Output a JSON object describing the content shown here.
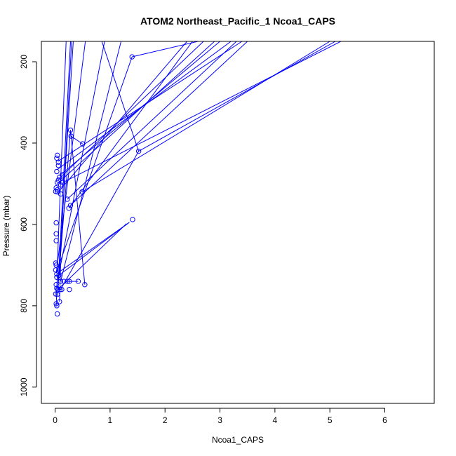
{
  "chart_data": {
    "type": "line",
    "title": "ATOM2 Northeast_Pacific_1 Ncoa1_CAPS",
    "xlabel": "Ncoa1_CAPS",
    "ylabel": "Pressure (mbar)",
    "x_ticks": [
      "0",
      "1",
      "2",
      "3",
      "4",
      "5",
      "6"
    ],
    "y_ticks": [
      "200",
      "400",
      "600",
      "800",
      "1000"
    ],
    "xlim": [
      -0.25,
      6.9
    ],
    "ylim": [
      1040,
      150
    ],
    "y_inverted": true,
    "grid": false,
    "legend": "none",
    "series_color": "#0000ff",
    "marker": "open-circle",
    "points": [
      [
        1.4,
        188
      ],
      [
        0.28,
        368
      ],
      [
        0.29,
        383
      ],
      [
        0.5,
        402
      ],
      [
        1.52,
        420
      ],
      [
        0.04,
        430
      ],
      [
        0.03,
        437
      ],
      [
        0.06,
        447
      ],
      [
        0.06,
        455
      ],
      [
        0.03,
        470
      ],
      [
        0.13,
        478
      ],
      [
        0.08,
        484
      ],
      [
        0.06,
        491
      ],
      [
        0.04,
        497
      ],
      [
        0.14,
        497
      ],
      [
        0.1,
        503
      ],
      [
        0.02,
        510
      ],
      [
        0.04,
        515
      ],
      [
        0.01,
        519
      ],
      [
        0.49,
        520
      ],
      [
        0.04,
        520
      ],
      [
        0.1,
        525
      ],
      [
        0.22,
        538
      ],
      [
        0.28,
        553
      ],
      [
        0.25,
        560
      ],
      [
        1.41,
        588
      ],
      [
        0.02,
        596
      ],
      [
        0.02,
        623
      ],
      [
        0.02,
        640
      ],
      [
        0.01,
        695
      ],
      [
        0.02,
        700
      ],
      [
        0.01,
        712
      ],
      [
        0.03,
        722
      ],
      [
        0.07,
        725
      ],
      [
        0.03,
        730
      ],
      [
        0.1,
        740
      ],
      [
        0.16,
        740
      ],
      [
        0.22,
        740
      ],
      [
        0.26,
        740
      ],
      [
        0.42,
        740
      ],
      [
        0.02,
        748
      ],
      [
        0.54,
        748
      ],
      [
        0.03,
        757
      ],
      [
        0.05,
        760
      ],
      [
        0.09,
        760
      ],
      [
        0.12,
        760
      ],
      [
        0.26,
        760
      ],
      [
        0.01,
        771
      ],
      [
        0.04,
        772
      ],
      [
        0.08,
        790
      ],
      [
        0.02,
        795
      ],
      [
        0.03,
        800
      ],
      [
        0.04,
        820
      ]
    ],
    "segments": [
      [
        [
          0.05,
          760
        ],
        [
          0.28,
          150
        ]
      ],
      [
        [
          0.08,
          725
        ],
        [
          0.3,
          150
        ]
      ],
      [
        [
          0.04,
          700
        ],
        [
          0.2,
          150
        ]
      ],
      [
        [
          0.06,
          740
        ],
        [
          0.33,
          150
        ]
      ],
      [
        [
          0.02,
          720
        ],
        [
          0.55,
          150
        ]
      ],
      [
        [
          0.1,
          700
        ],
        [
          0.9,
          150
        ]
      ],
      [
        [
          0.1,
          740
        ],
        [
          1.2,
          150
        ]
      ],
      [
        [
          0.06,
          520
        ],
        [
          2.4,
          150
        ]
      ],
      [
        [
          0.05,
          490
        ],
        [
          2.7,
          150
        ]
      ],
      [
        [
          0.08,
          480
        ],
        [
          3.0,
          150
        ]
      ],
      [
        [
          0.04,
          465
        ],
        [
          3.2,
          150
        ]
      ],
      [
        [
          0.05,
          445
        ],
        [
          3.4,
          150
        ]
      ],
      [
        [
          0.04,
          500
        ],
        [
          2.9,
          150
        ]
      ],
      [
        [
          0.22,
          538
        ],
        [
          3.3,
          150
        ]
      ],
      [
        [
          0.28,
          553
        ],
        [
          3.5,
          150
        ]
      ],
      [
        [
          0.25,
          560
        ],
        [
          2.5,
          150
        ]
      ],
      [
        [
          0.49,
          520
        ],
        [
          5.0,
          150
        ]
      ],
      [
        [
          0.14,
          497
        ],
        [
          5.2,
          150
        ]
      ],
      [
        [
          0.1,
          760
        ],
        [
          1.52,
          420
        ]
      ],
      [
        [
          1.52,
          420
        ],
        [
          0.85,
          150
        ]
      ],
      [
        [
          1.52,
          420
        ],
        [
          5.1,
          150
        ]
      ],
      [
        [
          1.4,
          188
        ],
        [
          2.6,
          150
        ]
      ],
      [
        [
          0.02,
          720
        ],
        [
          1.4,
          188
        ]
      ],
      [
        [
          0.07,
          725
        ],
        [
          1.35,
          595
        ]
      ],
      [
        [
          0.05,
          760
        ],
        [
          1.3,
          598
        ]
      ],
      [
        [
          0.04,
          720
        ],
        [
          1.35,
          595
        ]
      ],
      [
        [
          0.29,
          383
        ],
        [
          0.5,
          402
        ]
      ],
      [
        [
          0.06,
          740
        ],
        [
          0.28,
          368
        ]
      ],
      [
        [
          0.26,
          740
        ],
        [
          0.42,
          740
        ]
      ],
      [
        [
          0.54,
          748
        ],
        [
          0.28,
          368
        ]
      ],
      [
        [
          0.05,
          760
        ],
        [
          0.1,
          760
        ]
      ],
      [
        [
          0.3,
          740
        ],
        [
          0.2,
          740
        ]
      ],
      [
        [
          0.06,
          760
        ],
        [
          0.12,
          760
        ]
      ],
      [
        [
          0.02,
          800
        ],
        [
          0.04,
          720
        ]
      ],
      [
        [
          0.08,
          790
        ],
        [
          0.1,
          700
        ]
      ]
    ]
  }
}
